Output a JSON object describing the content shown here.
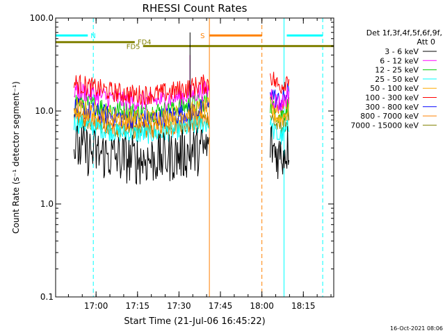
{
  "chart_data": {
    "type": "line",
    "title": "RHESSI Count Rates",
    "xlabel": "Start Time (21-Jul-06 16:45:22)",
    "ylabel": "Count Rate (s⁻¹ detector segment⁻¹)",
    "y_scale": "log",
    "ylim": [
      0.1,
      100
    ],
    "xlim": [
      "16:45:22",
      "18:26:00"
    ],
    "x_ticks": [
      "17:00",
      "17:15",
      "17:30",
      "17:45",
      "18:00",
      "18:15"
    ],
    "y_ticks": [
      "0.1",
      "1.0",
      "10.0",
      "100.0"
    ],
    "legend_title": [
      "Det 1f,3f,4f,5f,6f,9f,",
      "Att 0"
    ],
    "legend_placement": "right",
    "footer_date": "16-Oct-2021 08:06",
    "series": [
      {
        "name": "3 - 6 keV",
        "color": "#000000",
        "segments": [
          {
            "x": [
              "16:52",
              "17:41"
            ],
            "y": 4.0
          },
          {
            "x": [
              "18:03",
              "18:10"
            ],
            "y": 4.5
          }
        ],
        "peak": {
          "x": "17:34",
          "y": 70
        }
      },
      {
        "name": "6 - 12 keV",
        "color": "#ff00ff",
        "segments": [
          {
            "x": [
              "16:52",
              "17:41"
            ],
            "y": 17.0
          },
          {
            "x": [
              "18:03",
              "18:10"
            ],
            "y": 16.0
          }
        ],
        "peak": {
          "x": "17:34",
          "y": 40
        }
      },
      {
        "name": "12 - 25 keV",
        "color": "#00cc00",
        "segments": [
          {
            "x": [
              "16:52",
              "17:41"
            ],
            "y": 13.0
          },
          {
            "x": [
              "18:03",
              "18:10"
            ],
            "y": 12.0
          }
        ]
      },
      {
        "name": "25 - 50 keV",
        "color": "#00ffff",
        "segments": [
          {
            "x": [
              "16:52",
              "17:41"
            ],
            "y": 7.5
          },
          {
            "x": [
              "18:03",
              "18:10"
            ],
            "y": 7.0
          }
        ]
      },
      {
        "name": "50 - 100 keV",
        "color": "#ffaa00",
        "segments": [
          {
            "x": [
              "16:52",
              "17:41"
            ],
            "y": 11.0
          },
          {
            "x": [
              "18:03",
              "18:10"
            ],
            "y": 11.0
          }
        ]
      },
      {
        "name": "100 - 300 keV",
        "color": "#ff0000",
        "segments": [
          {
            "x": [
              "16:52",
              "17:41"
            ],
            "y": 20.0
          },
          {
            "x": [
              "18:03",
              "18:10"
            ],
            "y": 25.0
          }
        ]
      },
      {
        "name": "300 - 800 keV",
        "color": "#0000ff",
        "segments": [
          {
            "x": [
              "16:52",
              "17:41"
            ],
            "y": 11.0
          },
          {
            "x": [
              "18:03",
              "18:10"
            ],
            "y": 17.0
          }
        ]
      },
      {
        "name": "800 - 7000 keV",
        "color": "#ff8000",
        "segments": [
          {
            "x": [
              "16:52",
              "17:41"
            ],
            "y": 8.5
          },
          {
            "x": [
              "18:03",
              "18:10"
            ],
            "y": 13.0
          }
        ]
      },
      {
        "name": "7000 - 15000 keV",
        "color": "#808000",
        "segments": [
          {
            "x": [
              "16:52",
              "17:41"
            ],
            "y": 8.5
          },
          {
            "x": [
              "18:03",
              "18:10"
            ],
            "y": 9.0
          }
        ]
      }
    ],
    "flag_bars": [
      {
        "label": "N",
        "color": "#00ffff",
        "y": 65,
        "segments": [
          [
            "16:45:22",
            "16:57"
          ],
          [
            "18:09",
            "18:22"
          ]
        ]
      },
      {
        "label": "FD4",
        "color": "#808000",
        "y": 55,
        "segments": [
          [
            "16:45:22",
            "17:14"
          ]
        ]
      },
      {
        "label": "FD5",
        "color": "#808000",
        "y": 50,
        "segments": [
          [
            "17:17",
            "18:26:00"
          ]
        ]
      },
      {
        "label": "S",
        "color": "#ff8000",
        "y": 65,
        "segments": [
          [
            "17:41",
            "18:00"
          ]
        ]
      }
    ],
    "vertical_markers": [
      {
        "x": "16:45:22",
        "color": "#00ffff",
        "style": "solid"
      },
      {
        "x": "16:59",
        "color": "#00ffff",
        "style": "dashed"
      },
      {
        "x": "17:41",
        "color": "#ff8000",
        "style": "solid"
      },
      {
        "x": "18:00",
        "color": "#ff8000",
        "style": "dashed"
      },
      {
        "x": "18:08",
        "color": "#00ffff",
        "style": "solid"
      },
      {
        "x": "18:22",
        "color": "#00ffff",
        "style": "dashed"
      }
    ]
  }
}
